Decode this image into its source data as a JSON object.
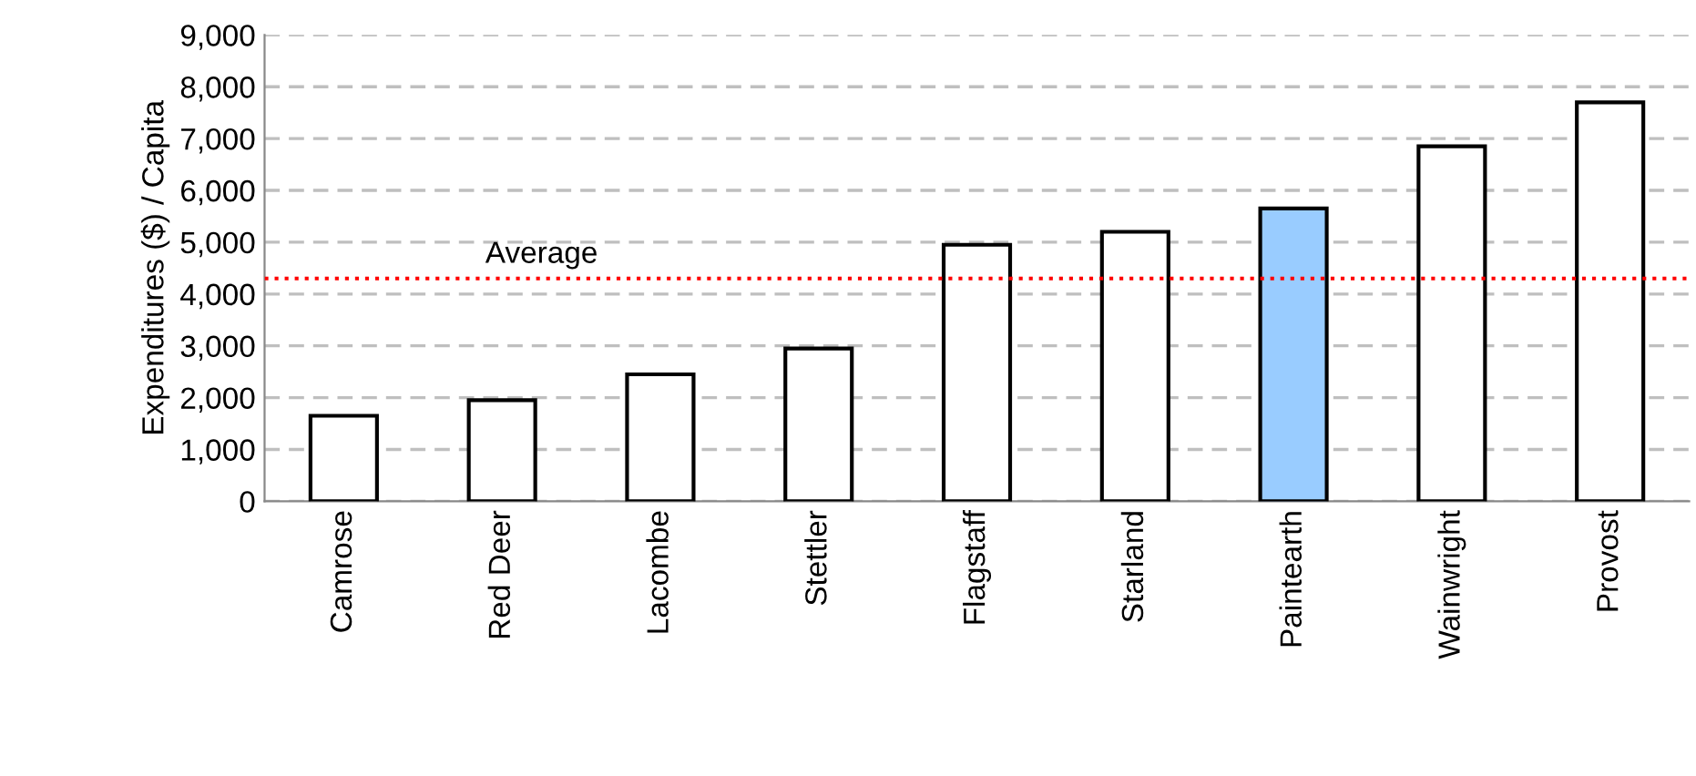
{
  "chart_data": {
    "type": "bar",
    "ylabel": "Expenditures ($) / Capita",
    "categories": [
      "Camrose",
      "Red Deer",
      "Lacombe",
      "Stettler",
      "Flagstaff",
      "Starland",
      "Paintearth",
      "Wainwright",
      "Provost"
    ],
    "values": [
      1650,
      1950,
      2450,
      2950,
      4950,
      5200,
      5650,
      6850,
      7700
    ],
    "colors": [
      "#ffffff",
      "#ffffff",
      "#ffffff",
      "#ffffff",
      "#ffffff",
      "#ffffff",
      "#99ccff",
      "#ffffff",
      "#ffffff"
    ],
    "ylim": [
      0,
      9000
    ],
    "yticks": [
      {
        "value": 0,
        "label": "0"
      },
      {
        "value": 1000,
        "label": "1,000"
      },
      {
        "value": 2000,
        "label": "2,000"
      },
      {
        "value": 3000,
        "label": "3,000"
      },
      {
        "value": 4000,
        "label": "4,000"
      },
      {
        "value": 5000,
        "label": "5,000"
      },
      {
        "value": 6000,
        "label": "6,000"
      },
      {
        "value": 7000,
        "label": "7,000"
      },
      {
        "value": 8000,
        "label": "8,000"
      },
      {
        "value": 9000,
        "label": "9,000"
      }
    ],
    "grid": "y",
    "ref_lines": [
      {
        "axis": "y",
        "value": 4300,
        "label": "Average",
        "color": "#ff0000",
        "line_style": "dotted"
      }
    ]
  }
}
